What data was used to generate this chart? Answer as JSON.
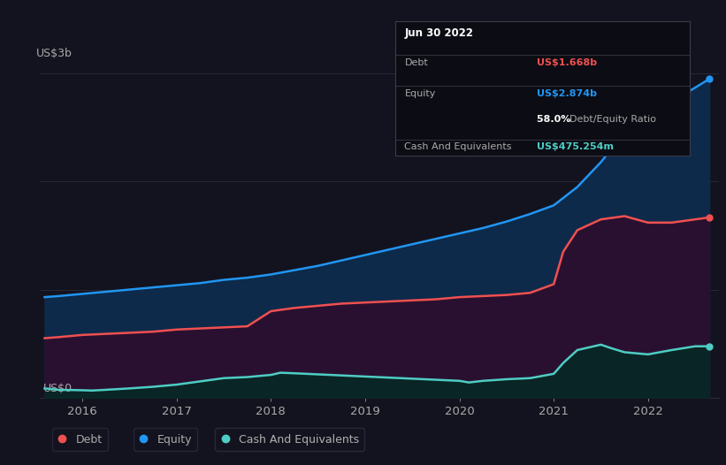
{
  "background_color": "#13131f",
  "chart_bg_color": "#13131f",
  "title_label": "US$3b",
  "bottom_label": "US$0",
  "x_ticks": [
    2016,
    2017,
    2018,
    2019,
    2020,
    2021,
    2022
  ],
  "equity_color": "#2196f3",
  "debt_color": "#f05050",
  "cash_color": "#4ecdc4",
  "equity_fill": "#0d2a4a",
  "debt_fill": "#2a1030",
  "cash_fill": "#0a2525",
  "grid_color": "#2a2a3a",
  "text_color": "#aaaaaa",
  "tooltip": {
    "date": "Jun 30 2022",
    "debt_label": "Debt",
    "debt_value": "US$1.668b",
    "equity_label": "Equity",
    "equity_value": "US$2.874b",
    "ratio_value": "58.0%",
    "ratio_label": "Debt/Equity Ratio",
    "cash_label": "Cash And Equivalents",
    "cash_value": "US$475.254m",
    "bg_color": "#0c0c14",
    "border_color": "#3a3a4a"
  },
  "legend": [
    {
      "label": "Debt",
      "color": "#f05050"
    },
    {
      "label": "Equity",
      "color": "#2196f3"
    },
    {
      "label": "Cash And Equivalents",
      "color": "#4ecdc4"
    }
  ],
  "ylim": [
    0,
    3.1
  ],
  "xlim_start": 2015.55,
  "xlim_end": 2022.75,
  "equity_data": {
    "x": [
      2015.6,
      2015.75,
      2016.0,
      2016.25,
      2016.5,
      2016.75,
      2017.0,
      2017.25,
      2017.5,
      2017.75,
      2018.0,
      2018.25,
      2018.5,
      2018.75,
      2019.0,
      2019.25,
      2019.5,
      2019.75,
      2020.0,
      2020.25,
      2020.5,
      2020.75,
      2021.0,
      2021.25,
      2021.5,
      2021.75,
      2022.0,
      2022.25,
      2022.5,
      2022.65
    ],
    "y": [
      0.93,
      0.94,
      0.96,
      0.98,
      1.0,
      1.02,
      1.04,
      1.06,
      1.09,
      1.11,
      1.14,
      1.18,
      1.22,
      1.27,
      1.32,
      1.37,
      1.42,
      1.47,
      1.52,
      1.57,
      1.63,
      1.7,
      1.78,
      1.95,
      2.18,
      2.45,
      2.62,
      2.74,
      2.87,
      2.95
    ]
  },
  "debt_data": {
    "x": [
      2015.6,
      2015.75,
      2016.0,
      2016.25,
      2016.5,
      2016.75,
      2017.0,
      2017.25,
      2017.5,
      2017.75,
      2018.0,
      2018.25,
      2018.5,
      2018.75,
      2019.0,
      2019.25,
      2019.5,
      2019.75,
      2020.0,
      2020.25,
      2020.5,
      2020.75,
      2021.0,
      2021.1,
      2021.25,
      2021.5,
      2021.75,
      2022.0,
      2022.25,
      2022.5,
      2022.65
    ],
    "y": [
      0.55,
      0.56,
      0.58,
      0.59,
      0.6,
      0.61,
      0.63,
      0.64,
      0.65,
      0.66,
      0.8,
      0.83,
      0.85,
      0.87,
      0.88,
      0.89,
      0.9,
      0.91,
      0.93,
      0.94,
      0.95,
      0.97,
      1.05,
      1.35,
      1.55,
      1.65,
      1.68,
      1.62,
      1.62,
      1.65,
      1.668
    ]
  },
  "cash_data": {
    "x": [
      2015.6,
      2015.75,
      2016.0,
      2016.1,
      2016.25,
      2016.5,
      2016.75,
      2017.0,
      2017.25,
      2017.5,
      2017.75,
      2018.0,
      2018.1,
      2018.25,
      2018.5,
      2018.75,
      2019.0,
      2019.25,
      2019.5,
      2019.75,
      2020.0,
      2020.1,
      2020.25,
      2020.5,
      2020.75,
      2021.0,
      2021.1,
      2021.25,
      2021.5,
      2021.6,
      2021.75,
      2022.0,
      2022.25,
      2022.5,
      2022.65
    ],
    "y": [
      0.085,
      0.072,
      0.068,
      0.065,
      0.072,
      0.085,
      0.1,
      0.12,
      0.15,
      0.18,
      0.19,
      0.21,
      0.23,
      0.225,
      0.215,
      0.205,
      0.195,
      0.185,
      0.175,
      0.165,
      0.155,
      0.14,
      0.155,
      0.17,
      0.18,
      0.22,
      0.32,
      0.44,
      0.49,
      0.46,
      0.42,
      0.4,
      0.44,
      0.475,
      0.475
    ]
  }
}
